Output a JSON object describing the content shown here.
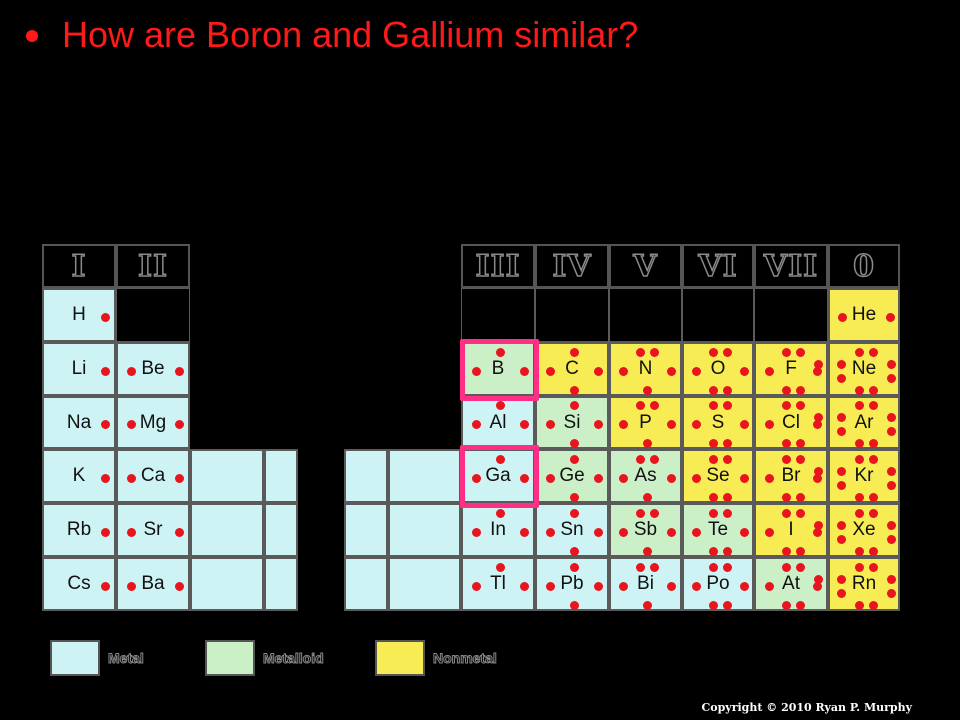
{
  "slide": {
    "bullet_text": "How are Boron and Gallium similar?",
    "copyright": "Copyright © 2010 Ryan P. Murphy"
  },
  "colors": {
    "metal": "#cdf3f5",
    "metalloid": "#cbf0c8",
    "nonmetal": "#f8ec55",
    "highlight": "#ff2e86",
    "electron": "#e8141e"
  },
  "group_headers": {
    "I": "I",
    "II": "II",
    "III": "III",
    "IV": "IV",
    "V": "V",
    "VI": "VI",
    "VII": "VII",
    "O": "0"
  },
  "elements": {
    "H": "H",
    "He": "He",
    "Li": "Li",
    "Be": "Be",
    "B": "B",
    "C": "C",
    "N": "N",
    "O": "O",
    "F": "F",
    "Ne": "Ne",
    "Na": "Na",
    "Mg": "Mg",
    "Al": "Al",
    "Si": "Si",
    "P": "P",
    "S": "S",
    "Cl": "Cl",
    "Ar": "Ar",
    "K": "K",
    "Ca": "Ca",
    "Ga": "Ga",
    "Ge": "Ge",
    "As": "As",
    "Se": "Se",
    "Br": "Br",
    "Kr": "Kr",
    "Rb": "Rb",
    "Sr": "Sr",
    "In": "In",
    "Sn": "Sn",
    "Sb": "Sb",
    "Te": "Te",
    "I": "I",
    "Xe": "Xe",
    "Cs": "Cs",
    "Ba": "Ba",
    "Tl": "Tl",
    "Pb": "Pb",
    "Bi": "Bi",
    "Po": "Po",
    "At": "At",
    "Rn": "Rn"
  },
  "legend": {
    "metal": "Metal",
    "metalloid": "Metalloid",
    "nonmetal": "Nonmetal"
  }
}
